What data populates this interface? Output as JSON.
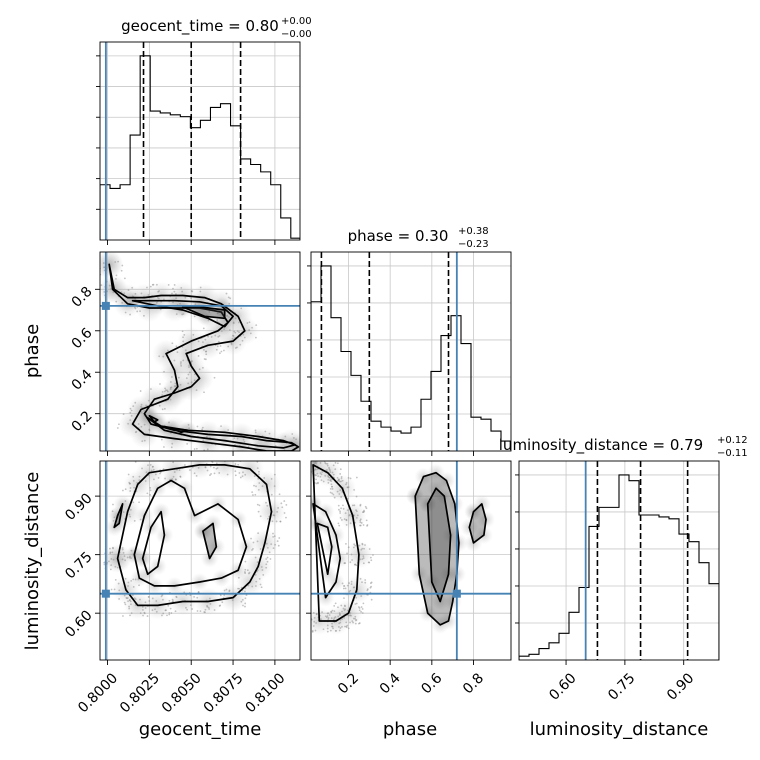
{
  "chart_data": {
    "type": "corner",
    "parameters": [
      "geocent_time",
      "phase",
      "luminosity_distance"
    ],
    "titles": {
      "geocent_time": {
        "name": "geocent_time",
        "value": "0.80",
        "plus": "+0.00",
        "minus": "−0.00"
      },
      "phase": {
        "name": "phase",
        "value": "0.30",
        "plus": "+0.38",
        "minus": "−0.23"
      },
      "luminosity_distance": {
        "name": "luminosity_distance",
        "value": "0.79",
        "plus": "+0.12",
        "minus": "−0.11"
      }
    },
    "axis_labels": {
      "geocent_time": "geocent_time",
      "phase": "phase",
      "luminosity_distance": "luminosity_distance"
    },
    "ranges": {
      "geocent_time": [
        0.79955,
        0.8115
      ],
      "phase": [
        0.02,
        0.98
      ],
      "luminosity_distance": [
        0.48,
        0.99
      ]
    },
    "ticks": {
      "geocent_time": [
        "0.8000",
        "0.8025",
        "0.8050",
        "0.8075",
        "0.8100"
      ],
      "phase": [
        "0.2",
        "0.4",
        "0.6",
        "0.8"
      ],
      "luminosity_distance": [
        "0.60",
        "0.75",
        "0.90"
      ]
    },
    "truth": {
      "geocent_time": 0.7999,
      "phase": 0.72,
      "luminosity_distance": 0.65
    },
    "quantiles": {
      "geocent_time": [
        0.80215,
        0.805,
        0.80795
      ],
      "phase": [
        0.07,
        0.3,
        0.68
      ],
      "luminosity_distance": [
        0.68,
        0.79,
        0.91
      ]
    },
    "histograms": {
      "geocent_time": {
        "edges": [
          0.79955,
          0.80015,
          0.80075,
          0.80135,
          0.80195,
          0.80255,
          0.80315,
          0.80375,
          0.80435,
          0.80495,
          0.80555,
          0.80615,
          0.80675,
          0.80735,
          0.80795,
          0.80855,
          0.80915,
          0.80975,
          0.81035,
          0.81095,
          0.8115
        ],
        "counts": [
          0.3,
          0.28,
          0.3,
          0.57,
          1.0,
          0.7,
          0.69,
          0.68,
          0.67,
          0.61,
          0.65,
          0.72,
          0.74,
          0.62,
          0.44,
          0.41,
          0.37,
          0.3,
          0.12,
          0.01
        ]
      },
      "phase": {
        "edges": [
          0.02,
          0.068,
          0.116,
          0.164,
          0.212,
          0.26,
          0.308,
          0.356,
          0.404,
          0.452,
          0.5,
          0.548,
          0.596,
          0.644,
          0.692,
          0.74,
          0.788,
          0.836,
          0.884,
          0.932,
          0.98
        ],
        "counts": [
          0.75,
          0.93,
          0.67,
          0.5,
          0.38,
          0.25,
          0.15,
          0.12,
          0.1,
          0.09,
          0.12,
          0.26,
          0.4,
          0.58,
          0.68,
          0.54,
          0.17,
          0.16,
          0.1,
          0.05
        ]
      },
      "luminosity_distance": {
        "edges": [
          0.48,
          0.5055,
          0.531,
          0.5565,
          0.582,
          0.6075,
          0.633,
          0.6585,
          0.684,
          0.7095,
          0.735,
          0.7605,
          0.786,
          0.8115,
          0.837,
          0.8625,
          0.888,
          0.9135,
          0.939,
          0.9645,
          0.99
        ],
        "counts": [
          0.02,
          0.03,
          0.06,
          0.09,
          0.14,
          0.25,
          0.38,
          0.7,
          0.8,
          0.8,
          0.97,
          0.94,
          0.76,
          0.76,
          0.75,
          0.74,
          0.66,
          0.62,
          0.51,
          0.4
        ]
      }
    },
    "contours": {
      "phase_vs_geocent_time": [
        {
          "x": [
            0.8001,
            0.8004,
            0.8012,
            0.8022,
            0.8032,
            0.8045,
            0.8058,
            0.8068,
            0.8078,
            0.8082,
            0.8075,
            0.806,
            0.8047,
            0.805,
            0.8055,
            0.805,
            0.804,
            0.8028,
            0.8022,
            0.8026,
            0.804,
            0.806,
            0.808,
            0.8095,
            0.811,
            0.8114,
            0.811,
            0.8095,
            0.808,
            0.806,
            0.804,
            0.8022,
            0.8015,
            0.802,
            0.8036,
            0.8042,
            0.804,
            0.8035,
            0.805,
            0.8066,
            0.8072,
            0.8068,
            0.8055,
            0.804,
            0.8025,
            0.8012,
            0.8003,
            0.8001
          ],
          "y": [
            0.92,
            0.8,
            0.76,
            0.76,
            0.77,
            0.77,
            0.76,
            0.73,
            0.67,
            0.6,
            0.55,
            0.53,
            0.49,
            0.43,
            0.37,
            0.33,
            0.3,
            0.27,
            0.2,
            0.15,
            0.12,
            0.1,
            0.09,
            0.07,
            0.06,
            0.04,
            0.02,
            0.02,
            0.04,
            0.06,
            0.08,
            0.1,
            0.15,
            0.22,
            0.27,
            0.33,
            0.41,
            0.49,
            0.55,
            0.6,
            0.64,
            0.69,
            0.71,
            0.71,
            0.71,
            0.73,
            0.8,
            0.92
          ]
        },
        {
          "x": [
            0.8015,
            0.8025,
            0.804,
            0.8055,
            0.8068,
            0.8075,
            0.807,
            0.806,
            0.8045,
            0.803,
            0.8015
          ],
          "y": [
            0.745,
            0.745,
            0.745,
            0.74,
            0.72,
            0.67,
            0.62,
            0.66,
            0.7,
            0.72,
            0.745
          ]
        },
        {
          "x": [
            0.8024,
            0.8032,
            0.8048,
            0.807,
            0.809,
            0.8105,
            0.8112,
            0.8105,
            0.809,
            0.807,
            0.805,
            0.8034,
            0.8024
          ],
          "y": [
            0.18,
            0.14,
            0.12,
            0.11,
            0.09,
            0.07,
            0.05,
            0.035,
            0.045,
            0.07,
            0.09,
            0.12,
            0.18
          ]
        },
        {
          "x": [
            0.8045,
            0.8055,
            0.807,
            0.807,
            0.8058,
            0.8045
          ],
          "y": [
            0.715,
            0.715,
            0.7,
            0.66,
            0.67,
            0.715
          ]
        },
        {
          "x": [
            0.8025,
            0.803,
            0.8028,
            0.8025
          ],
          "y": [
            0.19,
            0.17,
            0.16,
            0.19
          ]
        },
        {
          "x": [
            0.8038,
            0.8048,
            0.8044,
            0.8038
          ],
          "y": [
            0.13,
            0.12,
            0.11,
            0.13
          ]
        }
      ],
      "luminosity_distance_vs_geocent_time": [
        {
          "x": [
            0.8006,
            0.8012,
            0.8018,
            0.8025,
            0.804,
            0.8055,
            0.807,
            0.8085,
            0.8095,
            0.8098,
            0.8094,
            0.809,
            0.8085,
            0.8075,
            0.806,
            0.8045,
            0.803,
            0.8018,
            0.8011,
            0.8006
          ],
          "y": [
            0.74,
            0.86,
            0.93,
            0.96,
            0.97,
            0.98,
            0.98,
            0.97,
            0.93,
            0.86,
            0.78,
            0.72,
            0.68,
            0.64,
            0.63,
            0.63,
            0.62,
            0.62,
            0.66,
            0.74
          ]
        },
        {
          "x": [
            0.8016,
            0.8022,
            0.803,
            0.8038,
            0.8046,
            0.8052,
            0.8066,
            0.8078,
            0.8083,
            0.8078,
            0.8068,
            0.8055,
            0.804,
            0.8028,
            0.8019,
            0.8016
          ],
          "y": [
            0.75,
            0.85,
            0.92,
            0.94,
            0.92,
            0.85,
            0.88,
            0.84,
            0.77,
            0.71,
            0.69,
            0.68,
            0.67,
            0.67,
            0.69,
            0.75
          ]
        },
        {
          "x": [
            0.8021,
            0.8026,
            0.8032,
            0.8034,
            0.803,
            0.8024,
            0.8021
          ],
          "y": [
            0.74,
            0.82,
            0.86,
            0.8,
            0.72,
            0.7,
            0.74
          ]
        },
        {
          "x": [
            0.8057,
            0.8063,
            0.8065,
            0.8061,
            0.8057
          ],
          "y": [
            0.81,
            0.83,
            0.77,
            0.74,
            0.81
          ]
        },
        {
          "x": [
            0.8006,
            0.8009,
            0.8007,
            0.8004,
            0.8006
          ],
          "y": [
            0.85,
            0.88,
            0.83,
            0.82,
            0.85
          ]
        }
      ],
      "luminosity_distance_vs_phase": [
        {
          "x": [
            0.03,
            0.1,
            0.17,
            0.22,
            0.25,
            0.24,
            0.2,
            0.14,
            0.06,
            0.03
          ],
          "y": [
            0.98,
            0.96,
            0.92,
            0.85,
            0.75,
            0.66,
            0.6,
            0.58,
            0.58,
            0.98
          ]
        },
        {
          "x": [
            0.03,
            0.09,
            0.14,
            0.16,
            0.14,
            0.09,
            0.03
          ],
          "y": [
            0.88,
            0.86,
            0.8,
            0.74,
            0.68,
            0.64,
            0.88
          ]
        },
        {
          "x": [
            0.05,
            0.1,
            0.12,
            0.1,
            0.05
          ],
          "y": [
            0.83,
            0.82,
            0.77,
            0.7,
            0.83
          ]
        },
        {
          "x": [
            0.52,
            0.56,
            0.62,
            0.67,
            0.71,
            0.73,
            0.72,
            0.7,
            0.68,
            0.64,
            0.58,
            0.54,
            0.52
          ],
          "y": [
            0.9,
            0.95,
            0.96,
            0.94,
            0.88,
            0.78,
            0.7,
            0.63,
            0.58,
            0.57,
            0.6,
            0.7,
            0.9
          ]
        },
        {
          "x": [
            0.58,
            0.62,
            0.66,
            0.69,
            0.68,
            0.64,
            0.6,
            0.58
          ],
          "y": [
            0.88,
            0.92,
            0.9,
            0.8,
            0.7,
            0.63,
            0.68,
            0.88
          ]
        },
        {
          "x": [
            0.8,
            0.84,
            0.86,
            0.85,
            0.8,
            0.78,
            0.8
          ],
          "y": [
            0.86,
            0.88,
            0.84,
            0.8,
            0.78,
            0.82,
            0.86
          ]
        }
      ]
    }
  }
}
